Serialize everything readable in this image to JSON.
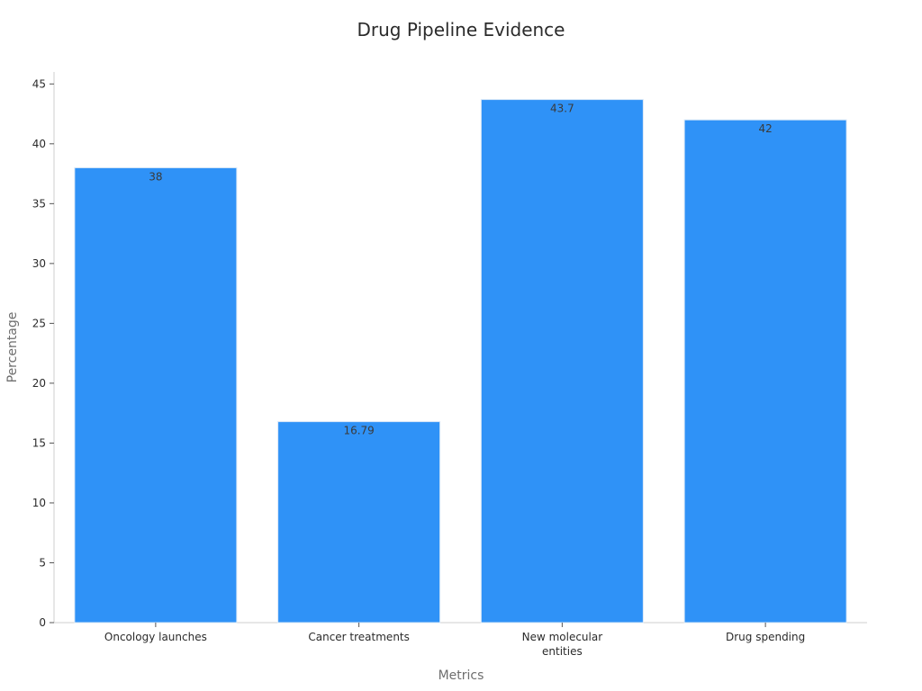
{
  "chart_data": {
    "type": "bar",
    "title": "Drug Pipeline Evidence",
    "xlabel": "Metrics",
    "ylabel": "Percentage",
    "categories": [
      [
        "Oncology launches"
      ],
      [
        "Cancer treatments"
      ],
      [
        "New molecular",
        "entities"
      ],
      [
        "Drug spending"
      ]
    ],
    "values": [
      38,
      16.79,
      43.7,
      42
    ],
    "value_labels": [
      "38",
      "16.79",
      "43.7",
      "42"
    ],
    "ylim": [
      0,
      46
    ],
    "yticks": [
      0,
      5,
      10,
      15,
      20,
      25,
      30,
      35,
      40,
      45
    ],
    "grid": false,
    "legend": "none",
    "bar_color": "#2f92f7"
  }
}
